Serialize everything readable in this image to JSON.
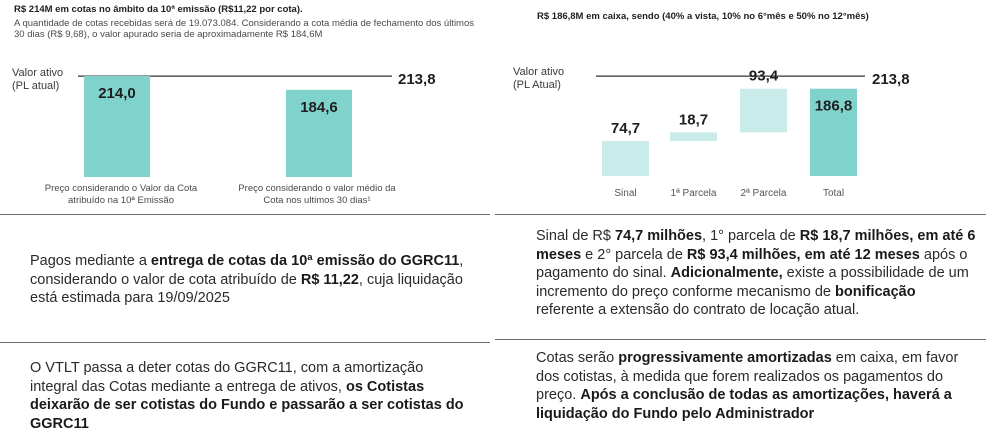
{
  "left_header": {
    "title": "R$ 214M em cotas no âmbito da 10ª emissão (R$11,22 por cota).",
    "subtitle": "A quantidade de cotas recebidas será de 19.073.084. Considerando a cota média de fechamento dos últimos 30 dias (R$ 9,68), o valor apurado seria de aproximadamente R$ 184,6M"
  },
  "right_header": {
    "title": "R$ 186,8M em caixa, sendo (40% a vista, 10% no 6°mês e 50% no 12°mês)"
  },
  "colors": {
    "bar_dark": "#7fd3cc",
    "bar_light": "#c9ecea",
    "ref_line": "#333333"
  },
  "chart_data": [
    {
      "type": "bar",
      "reference_line": {
        "label_line1": "Valor ativo",
        "label_line2": "(PL atual)",
        "value": 213.8,
        "value_label": "213,8"
      },
      "categories": [
        "Preço considerando o Valor da Cota atribuído na 10ª Emissão",
        "Preço considerando o valor médio da Cota nos ultimos 30 dias¹"
      ],
      "category_lines": [
        [
          "Preço considerando o Valor da Cota",
          "atribuído na 10ª Emissão"
        ],
        [
          "Preço considerando o valor médio da",
          "Cota nos ultimos 30 dias¹"
        ]
      ],
      "values": [
        214.0,
        184.6
      ],
      "value_labels": [
        "214,0",
        "184,6"
      ],
      "ylim": [
        0,
        214
      ]
    },
    {
      "type": "bar",
      "subtype": "waterfall",
      "reference_line": {
        "label_line1": "Valor ativo",
        "label_line2": "(PL Atual)",
        "value": 213.8,
        "value_label": "213,8"
      },
      "categories": [
        "Sinal",
        "1ª Parcela",
        "2ª Parcela",
        "Total"
      ],
      "values": [
        74.7,
        18.7,
        93.4,
        186.8
      ],
      "value_labels": [
        "74,7",
        "18,7",
        "93,4",
        "186,8"
      ],
      "bases": [
        0,
        74.7,
        93.4,
        0
      ],
      "ylim": [
        0,
        214
      ]
    }
  ],
  "text_blocks": {
    "left_top": [
      {
        "t": "Pagos mediante a ",
        "b": false
      },
      {
        "t": "entrega de cotas da 10ª emissão do GGRC11",
        "b": true
      },
      {
        "t": ", considerando o valor de cota atribuído de ",
        "b": false
      },
      {
        "t": "R$ 11,22",
        "b": true
      },
      {
        "t": ", cuja liquidação está estimada para 19/09/2025",
        "b": false
      }
    ],
    "right_top": [
      {
        "t": "Sinal de R$ ",
        "b": false
      },
      {
        "t": "74,7 milhões",
        "b": true
      },
      {
        "t": ", 1° parcela de ",
        "b": false
      },
      {
        "t": "R$ 18,7 milhões, em até 6 meses",
        "b": true
      },
      {
        "t": " e 2° parcela de ",
        "b": false
      },
      {
        "t": "R$ 93,4 milhões, em até 12 meses",
        "b": true
      },
      {
        "t": " após o pagamento do sinal. ",
        "b": false
      },
      {
        "t": "Adicionalmente,",
        "b": true
      },
      {
        "t": " existe a possibilidade de um incremento do preço conforme mecanismo de ",
        "b": false
      },
      {
        "t": "bonificação",
        "b": true
      },
      {
        "t": " referente a extensão do contrato de locação atual.",
        "b": false
      }
    ],
    "left_bottom": [
      {
        "t": "O VTLT passa a deter cotas do GGRC11, com a amortização integral das Cotas mediante a entrega de ativos, ",
        "b": false
      },
      {
        "t": "os Cotistas deixarão de ser cotistas do Fundo e passarão a ser cotistas do GGRC11",
        "b": true
      }
    ],
    "right_bottom": [
      {
        "t": "Cotas serão ",
        "b": false
      },
      {
        "t": "progressivamente amortizadas",
        "b": true
      },
      {
        "t": " em caixa, em favor dos cotistas, à medida que forem realizados os pagamentos do preço. ",
        "b": false
      },
      {
        "t": "Após a conclusão de todas as amortizações, haverá a liquidação do Fundo pelo Administrador",
        "b": true
      }
    ]
  }
}
